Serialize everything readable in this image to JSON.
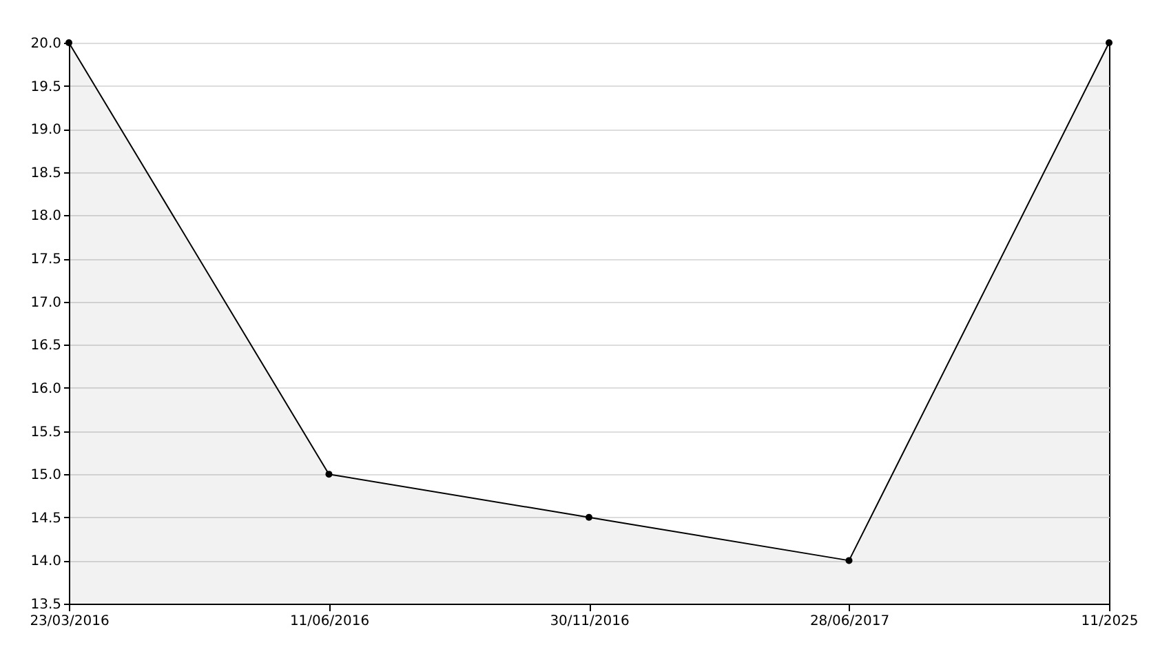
{
  "chart_data": {
    "type": "area",
    "categories": [
      "23/03/2016",
      "11/06/2016",
      "30/11/2016",
      "28/06/2017",
      "11/2025"
    ],
    "series": [
      {
        "color": "#000000",
        "values": [
          20.0,
          15.0,
          14.5,
          14.0,
          20.0
        ]
      }
    ],
    "ylim": [
      13.5,
      20.0
    ],
    "yticks": [
      {
        "value": 13.5,
        "label": "13.5"
      },
      {
        "value": 14,
        "label": "14.0"
      },
      {
        "value": 14.5,
        "label": "14.5"
      },
      {
        "value": 15,
        "label": "15.0"
      },
      {
        "value": 15.5,
        "label": "15.5"
      },
      {
        "value": 16,
        "label": "16.0"
      },
      {
        "value": 16.5,
        "label": "16.5"
      },
      {
        "value": 17,
        "label": "17.0"
      },
      {
        "value": 17.5,
        "label": "17.5"
      },
      {
        "value": 18,
        "label": "18.0"
      },
      {
        "value": 18.5,
        "label": "18.5"
      },
      {
        "value": 19,
        "label": "19.0"
      },
      {
        "value": 19.5,
        "label": "19.5"
      },
      {
        "value": 20,
        "label": "20.0"
      }
    ],
    "grid": "y",
    "marker": "circle",
    "line_style": "solid"
  }
}
